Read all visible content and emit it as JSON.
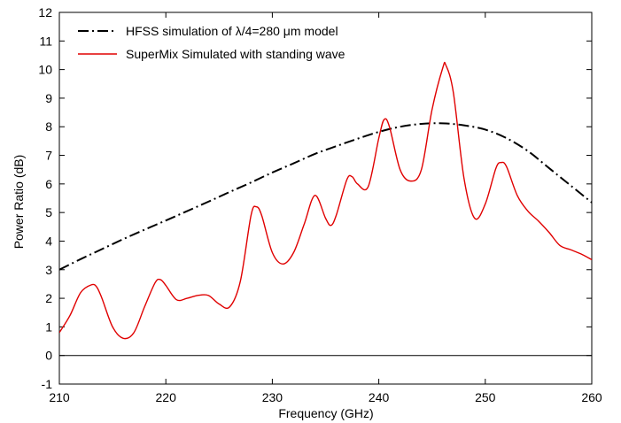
{
  "chart_data": {
    "type": "line",
    "xlabel": "Frequency (GHz)",
    "ylabel": "Power Ratio (dB)",
    "xlim": [
      210,
      260
    ],
    "ylim": [
      -1,
      12
    ],
    "xticks": [
      210,
      220,
      230,
      240,
      250,
      260
    ],
    "yticks": [
      -1,
      0,
      1,
      2,
      3,
      4,
      5,
      6,
      7,
      8,
      9,
      10,
      11,
      12
    ],
    "grid": false,
    "zero_line": true,
    "legend_position": "top-left",
    "series": [
      {
        "name": "HFSS simulation of λ/4=280 μm model",
        "style": "dash-dot",
        "color": "#000000",
        "x": [
          210,
          212,
          214,
          216,
          218,
          220,
          222,
          224,
          226,
          228,
          230,
          232,
          234,
          236,
          238,
          240,
          242,
          244,
          246,
          248,
          250,
          252,
          254,
          256,
          258,
          260
        ],
        "y": [
          3.0,
          3.37,
          3.72,
          4.07,
          4.4,
          4.72,
          5.05,
          5.38,
          5.72,
          6.05,
          6.4,
          6.72,
          7.05,
          7.32,
          7.58,
          7.82,
          8.0,
          8.1,
          8.12,
          8.05,
          7.9,
          7.6,
          7.15,
          6.55,
          5.95,
          5.35
        ]
      },
      {
        "name": "SuperMix Simulated with standing wave",
        "style": "solid",
        "color": "#e00000",
        "x": [
          210,
          211,
          212,
          213,
          213.5,
          214,
          215,
          216,
          217,
          218,
          219,
          219.5,
          220,
          221,
          222,
          223,
          224,
          225,
          226,
          227,
          228,
          228.5,
          229,
          230,
          231,
          232,
          233,
          234,
          235,
          235.5,
          236,
          237,
          237.5,
          238,
          239,
          240,
          240.5,
          241,
          242,
          243,
          244,
          245,
          246,
          246.3,
          247,
          248,
          249,
          250,
          251,
          251.5,
          252,
          253,
          254,
          255,
          256,
          257,
          258,
          259,
          260
        ],
        "y": [
          0.8,
          1.4,
          2.2,
          2.47,
          2.4,
          2.0,
          1.0,
          0.6,
          0.8,
          1.7,
          2.55,
          2.65,
          2.45,
          1.95,
          2.0,
          2.1,
          2.1,
          1.8,
          1.7,
          2.6,
          4.9,
          5.2,
          4.9,
          3.6,
          3.2,
          3.6,
          4.6,
          5.6,
          4.8,
          4.55,
          4.9,
          6.15,
          6.25,
          6.0,
          5.9,
          7.6,
          8.25,
          8.0,
          6.5,
          6.1,
          6.5,
          8.6,
          10.05,
          10.15,
          9.2,
          6.2,
          4.8,
          5.3,
          6.55,
          6.75,
          6.6,
          5.6,
          5.05,
          4.7,
          4.3,
          3.85,
          3.7,
          3.55,
          3.35
        ]
      }
    ]
  }
}
